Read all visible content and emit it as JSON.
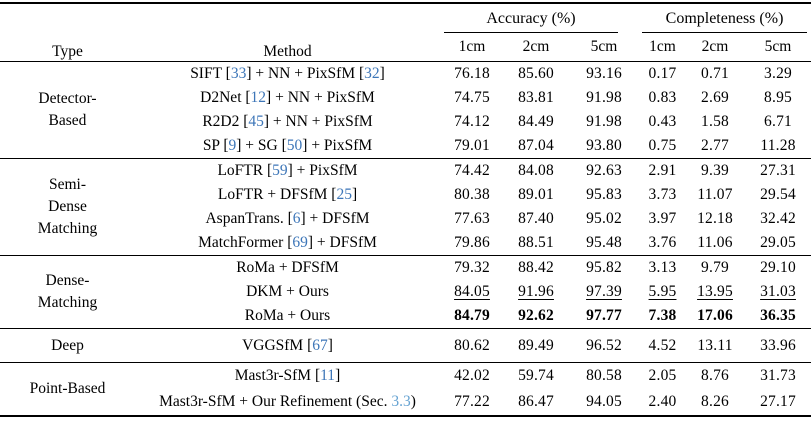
{
  "colors": {
    "citation_link": "#3d76b8",
    "section_link": "#66a3d2",
    "text": "#000000",
    "rule": "#000000"
  },
  "header": {
    "type_label": "Type",
    "method_label": "Method",
    "groups": [
      {
        "label": "Accuracy (%)"
      },
      {
        "label": "Completeness (%)"
      }
    ],
    "subheaders": [
      "1cm",
      "2cm",
      "5cm",
      "1cm",
      "2cm",
      "5cm"
    ]
  },
  "sections": [
    {
      "type_lines": [
        "Detector-",
        "Based"
      ],
      "css": "sec-detector",
      "rows": [
        {
          "method": [
            {
              "text": "SIFT [",
              "style": "plain"
            },
            {
              "text": "33",
              "style": "cite"
            },
            {
              "text": "] + NN + PixSfM [",
              "style": "plain"
            },
            {
              "text": "32",
              "style": "cite"
            },
            {
              "text": "]",
              "style": "plain"
            }
          ],
          "values": [
            "76.18",
            "85.60",
            "93.16",
            "0.17",
            "0.71",
            "3.29"
          ],
          "value_style": "normal"
        },
        {
          "method": [
            {
              "text": "D2Net [",
              "style": "plain"
            },
            {
              "text": "12",
              "style": "cite"
            },
            {
              "text": "] + NN + PixSfM",
              "style": "plain"
            }
          ],
          "values": [
            "74.75",
            "83.81",
            "91.98",
            "0.83",
            "2.69",
            "8.95"
          ],
          "value_style": "normal"
        },
        {
          "method": [
            {
              "text": "R2D2 [",
              "style": "plain"
            },
            {
              "text": "45",
              "style": "cite"
            },
            {
              "text": "] + NN + PixSfM",
              "style": "plain"
            }
          ],
          "values": [
            "74.12",
            "84.49",
            "91.98",
            "0.43",
            "1.58",
            "6.71"
          ],
          "value_style": "normal"
        },
        {
          "method": [
            {
              "text": "SP [",
              "style": "plain"
            },
            {
              "text": "9",
              "style": "cite"
            },
            {
              "text": "] + SG [",
              "style": "plain"
            },
            {
              "text": "50",
              "style": "cite"
            },
            {
              "text": "] + PixSfM",
              "style": "plain"
            }
          ],
          "values": [
            "79.01",
            "87.04",
            "93.80",
            "0.75",
            "2.77",
            "11.28"
          ],
          "value_style": "normal"
        }
      ]
    },
    {
      "type_lines": [
        "Semi-",
        "Dense",
        "Matching"
      ],
      "css": "sec-semidense",
      "rows": [
        {
          "method": [
            {
              "text": "LoFTR [",
              "style": "plain"
            },
            {
              "text": "59",
              "style": "cite"
            },
            {
              "text": "] + PixSfM",
              "style": "plain"
            }
          ],
          "values": [
            "74.42",
            "84.08",
            "92.63",
            "2.91",
            "9.39",
            "27.31"
          ],
          "value_style": "normal"
        },
        {
          "method": [
            {
              "text": "LoFTR + DFSfM [",
              "style": "plain"
            },
            {
              "text": "25",
              "style": "cite"
            },
            {
              "text": "]",
              "style": "plain"
            }
          ],
          "values": [
            "80.38",
            "89.01",
            "95.83",
            "3.73",
            "11.07",
            "29.54"
          ],
          "value_style": "normal"
        },
        {
          "method": [
            {
              "text": "AspanTrans. [",
              "style": "plain"
            },
            {
              "text": "6",
              "style": "cite"
            },
            {
              "text": "] + DFSfM",
              "style": "plain"
            }
          ],
          "values": [
            "77.63",
            "87.40",
            "95.02",
            "3.97",
            "12.18",
            "32.42"
          ],
          "value_style": "normal"
        },
        {
          "method": [
            {
              "text": "MatchFormer [",
              "style": "plain"
            },
            {
              "text": "69",
              "style": "cite"
            },
            {
              "text": "] + DFSfM",
              "style": "plain"
            }
          ],
          "values": [
            "79.86",
            "88.51",
            "95.48",
            "3.76",
            "11.06",
            "29.05"
          ],
          "value_style": "normal"
        }
      ]
    },
    {
      "type_lines": [
        "Dense-",
        "Matching"
      ],
      "css": "sec-dense",
      "rows": [
        {
          "method": [
            {
              "text": "RoMa + DFSfM",
              "style": "plain"
            }
          ],
          "values": [
            "79.32",
            "88.42",
            "95.82",
            "3.13",
            "9.79",
            "29.10"
          ],
          "value_style": "normal"
        },
        {
          "method": [
            {
              "text": "DKM + Ours",
              "style": "plain"
            }
          ],
          "values": [
            "84.05",
            "91.96",
            "97.39",
            "5.95",
            "13.95",
            "31.03"
          ],
          "value_style": "underline"
        },
        {
          "method": [
            {
              "text": "RoMa + Ours",
              "style": "plain"
            }
          ],
          "values": [
            "84.79",
            "92.62",
            "97.77",
            "7.38",
            "17.06",
            "36.35"
          ],
          "value_style": "bold"
        }
      ]
    },
    {
      "type_lines": [
        "Deep"
      ],
      "css": "sec-deep",
      "rows": [
        {
          "method": [
            {
              "text": "VGGSfM [",
              "style": "plain"
            },
            {
              "text": "67",
              "style": "cite"
            },
            {
              "text": "]",
              "style": "plain"
            }
          ],
          "values": [
            "80.62",
            "89.49",
            "96.52",
            "4.52",
            "13.11",
            "33.96"
          ],
          "value_style": "normal"
        }
      ]
    },
    {
      "type_lines": [
        "Point-Based"
      ],
      "css": "sec-point",
      "rows": [
        {
          "method": [
            {
              "text": "Mast3r-SfM [",
              "style": "plain"
            },
            {
              "text": "11",
              "style": "cite"
            },
            {
              "text": "]",
              "style": "plain"
            }
          ],
          "values": [
            "42.02",
            "59.74",
            "80.58",
            "2.05",
            "8.76",
            "31.73"
          ],
          "value_style": "normal"
        },
        {
          "method": [
            {
              "text": "Mast3r-SfM + Our Refinement (Sec. ",
              "style": "plain"
            },
            {
              "text": "3.3",
              "style": "secref"
            },
            {
              "text": ")",
              "style": "plain"
            }
          ],
          "values": [
            "77.22",
            "86.47",
            "94.05",
            "2.40",
            "8.26",
            "27.17"
          ],
          "value_style": "normal"
        }
      ]
    }
  ]
}
